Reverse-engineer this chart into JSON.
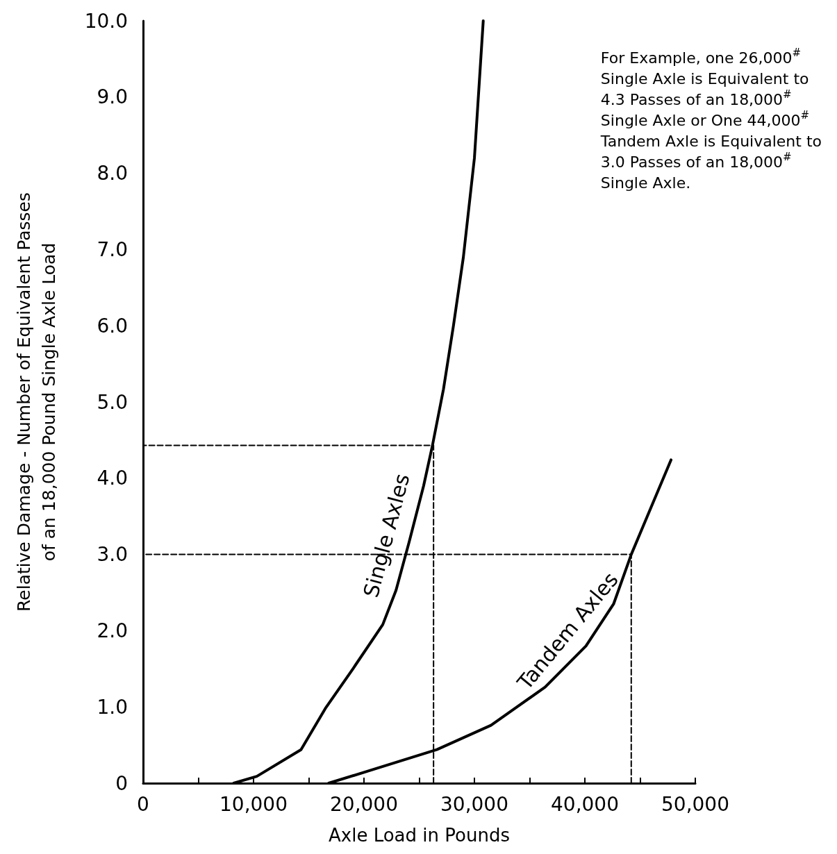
{
  "chart_data": {
    "type": "line",
    "xlabel": "Axle Load in Pounds",
    "ylabel": "Relative Damage - Number of Equivalent Passes\nof an 18,000 Pound Single Axle Load",
    "annotations": [
      "For Example, one 26,000$^{#}$\nSingle Axle is Equivalent to\n4.3 Passes of an 18,000$^{#}$\nSingle Axle or One 44,000$^{#}$\nTandem Axle is Equivalent to\n3.0 Passes of an 18,000$^{#}$\nSingle Axle."
    ],
    "series": [
      {
        "name": "Single Axles",
        "color": "#000000",
        "x": [
          8200,
          10300,
          14300,
          16500,
          19000,
          21700,
          22900,
          24100,
          25400,
          26200,
          27200,
          28100,
          29000,
          30000,
          30800
        ],
        "values": [
          0,
          0.09,
          0.44,
          0.98,
          1.5,
          2.08,
          2.53,
          3.17,
          3.9,
          4.43,
          5.17,
          6.0,
          6.9,
          8.2,
          10.0
        ]
      },
      {
        "name": "Tandem Axles",
        "color": "#000000",
        "x": [
          16800,
          20400,
          26600,
          31500,
          36400,
          40100,
          42600,
          44200,
          46000,
          47800
        ],
        "values": [
          0,
          0.16,
          0.44,
          0.76,
          1.26,
          1.8,
          2.35,
          3.0,
          3.62,
          4.24
        ]
      },
      {
        "color": "#000000",
        "line_style": "dashed",
        "x": [
          26300,
          26300,
          0
        ],
        "values": [
          0,
          4.43,
          4.43
        ]
      },
      {
        "color": "#000000",
        "line_style": "dashed",
        "x": [
          44200,
          44200,
          0
        ],
        "values": [
          0,
          3.0,
          3.0
        ]
      }
    ],
    "xlim": [
      0,
      50000
    ],
    "xticks": [
      0,
      {
        "value": 5000,
        "label": null
      },
      {
        "value": 10000,
        "label": "10,000"
      },
      {
        "value": 15000,
        "label": null
      },
      {
        "value": 20000,
        "label": "20,000"
      },
      {
        "value": 25000,
        "label": null
      },
      {
        "value": 30000,
        "label": "30,000"
      },
      {
        "value": 35000,
        "label": null
      },
      {
        "value": 40000,
        "label": "40,000"
      },
      {
        "value": 45000,
        "label": null
      },
      {
        "value": 50000,
        "label": "50,000"
      }
    ],
    "ylim": [
      0,
      10
    ],
    "yticks": [
      0,
      {
        "value": 1,
        "label": "1.0"
      },
      {
        "value": 2,
        "label": "2.0"
      },
      {
        "value": 3,
        "label": "3.0"
      },
      {
        "value": 4,
        "label": "4.0"
      },
      {
        "value": 5,
        "label": "5.0"
      },
      {
        "value": 6,
        "label": "6.0"
      },
      {
        "value": 7,
        "label": "7.0"
      },
      {
        "value": 8,
        "label": "8.0"
      },
      {
        "value": 9,
        "label": "9.0"
      },
      {
        "value": 10,
        "label": "10.0"
      }
    ],
    "grid": false,
    "legend": false,
    "marker": "none",
    "line_style": "solid"
  }
}
